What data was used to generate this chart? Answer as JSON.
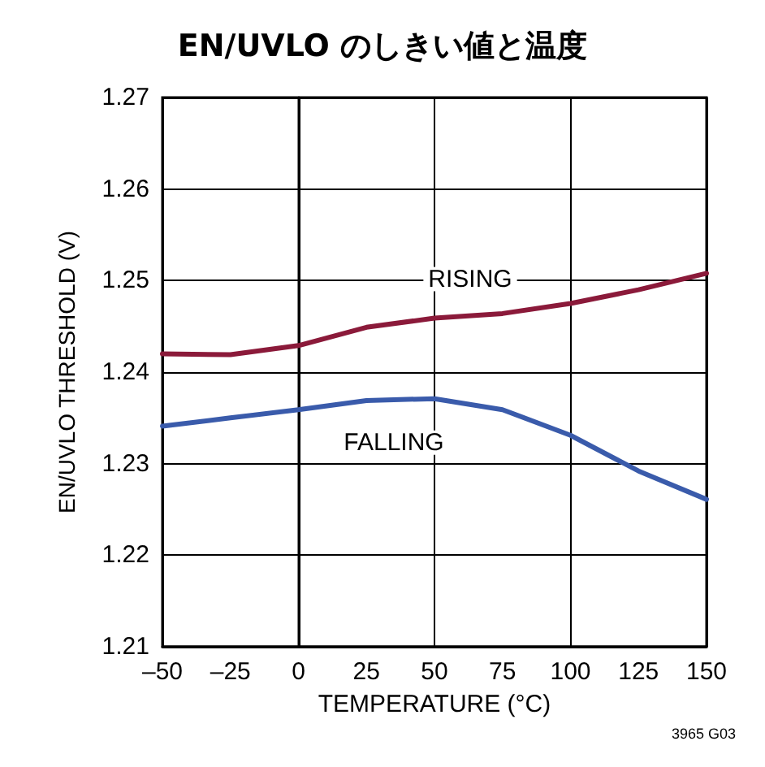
{
  "chart_data": {
    "type": "line",
    "title": "EN/UVLO のしきい値と温度",
    "xlabel": "TEMPERATURE (°C)",
    "ylabel": "EN/UVLO THRESHOLD (V)",
    "x": [
      -50,
      -25,
      0,
      25,
      50,
      75,
      100,
      125,
      150
    ],
    "series": [
      {
        "name": "RISING",
        "color": "#8b1a3a",
        "values": [
          1.242,
          1.2419,
          1.2429,
          1.2449,
          1.2459,
          1.2464,
          1.2475,
          1.249,
          1.2508
        ]
      },
      {
        "name": "FALLING",
        "color": "#3a5bab",
        "values": [
          1.2341,
          1.235,
          1.2359,
          1.2369,
          1.2371,
          1.2359,
          1.2331,
          1.2292,
          1.2261
        ]
      }
    ],
    "annotations": [
      "3965 G03"
    ],
    "xlim": [
      -50,
      150
    ],
    "xticks": [
      {
        "value": -50,
        "label": "–50"
      },
      {
        "value": -25,
        "label": "–25"
      },
      0,
      25,
      50,
      75,
      100,
      125,
      150
    ],
    "ylim": [
      1.21,
      1.27
    ],
    "yticks": [
      1.21,
      1.22,
      1.23,
      1.24,
      1.25,
      1.26,
      1.27
    ],
    "grid": true,
    "marker": "none",
    "line_style": "solid"
  }
}
